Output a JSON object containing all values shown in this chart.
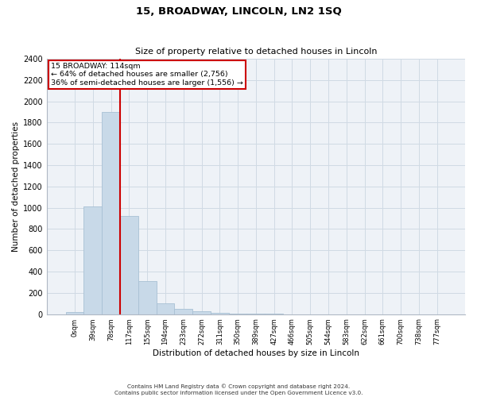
{
  "title1": "15, BROADWAY, LINCOLN, LN2 1SQ",
  "title2": "Size of property relative to detached houses in Lincoln",
  "xlabel": "Distribution of detached houses by size in Lincoln",
  "ylabel": "Number of detached properties",
  "footnote1": "Contains HM Land Registry data © Crown copyright and database right 2024.",
  "footnote2": "Contains public sector information licensed under the Open Government Licence v3.0.",
  "bar_labels": [
    "0sqm",
    "39sqm",
    "78sqm",
    "117sqm",
    "155sqm",
    "194sqm",
    "233sqm",
    "272sqm",
    "311sqm",
    "350sqm",
    "389sqm",
    "427sqm",
    "466sqm",
    "505sqm",
    "544sqm",
    "583sqm",
    "622sqm",
    "661sqm",
    "700sqm",
    "738sqm",
    "777sqm"
  ],
  "bar_values": [
    20,
    1010,
    1900,
    920,
    310,
    100,
    50,
    25,
    15,
    5,
    2,
    1,
    0,
    0,
    0,
    0,
    0,
    0,
    0,
    0,
    0
  ],
  "bar_color": "#c8d9e8",
  "bar_edge_color": "#a8c0d4",
  "ylim": [
    0,
    2400
  ],
  "yticks": [
    0,
    200,
    400,
    600,
    800,
    1000,
    1200,
    1400,
    1600,
    1800,
    2000,
    2200,
    2400
  ],
  "vline_x": 2.5,
  "vline_color": "#cc0000",
  "annotation_box_color": "#cc0000",
  "property_label": "15 BROADWAY: 114sqm",
  "annotation_line1": "← 64% of detached houses are smaller (2,756)",
  "annotation_line2": "36% of semi-detached houses are larger (1,556) →",
  "grid_color": "#d0dae4",
  "background_color": "#eef2f7"
}
